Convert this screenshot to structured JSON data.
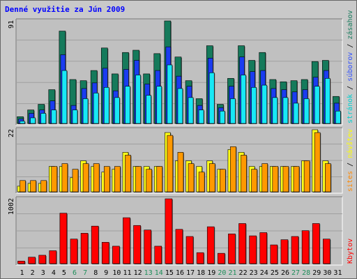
{
  "title": "Denné využitie za Jún 2009",
  "chart_data": [
    {
      "type": "bar",
      "name": "pages-hits-files",
      "x": [
        1,
        2,
        3,
        4,
        5,
        6,
        7,
        8,
        9,
        10,
        11,
        12,
        13,
        14,
        15,
        16,
        17,
        18,
        19,
        20,
        21,
        22,
        23,
        24,
        25,
        26,
        27,
        28,
        29,
        30,
        31
      ],
      "ylim": [
        0,
        91
      ],
      "y_tick_label": "91",
      "series": [
        {
          "name": "zásahov",
          "color": "#157a5b",
          "values": [
            6,
            12,
            17,
            30,
            82,
            39,
            38,
            47,
            67,
            44,
            63,
            65,
            44,
            62,
            91,
            59,
            38,
            22,
            69,
            17,
            40,
            69,
            56,
            63,
            39,
            37,
            38,
            39,
            55,
            56,
            24
          ]
        },
        {
          "name": "súborov",
          "color": "#1a3cf0",
          "values": [
            4,
            9,
            12,
            20,
            61,
            16,
            31,
            36,
            49,
            29,
            48,
            56,
            35,
            47,
            68,
            42,
            33,
            16,
            58,
            14,
            33,
            59,
            46,
            47,
            31,
            30,
            28,
            30,
            41,
            47,
            18
          ]
        },
        {
          "name": "stránok",
          "color": "#18e8f6",
          "values": [
            2,
            5,
            9,
            12,
            47,
            12,
            22,
            27,
            32,
            23,
            33,
            43,
            25,
            33,
            52,
            31,
            23,
            12,
            45,
            11,
            22,
            43,
            32,
            34,
            23,
            23,
            18,
            22,
            33,
            40,
            11
          ]
        }
      ],
      "right_label_colors": [
        "#00d0d0",
        "#3050ff",
        "#157a5b"
      ]
    },
    {
      "type": "bar",
      "name": "visits-sites",
      "x": [
        1,
        2,
        3,
        4,
        5,
        6,
        7,
        8,
        9,
        10,
        11,
        12,
        13,
        14,
        15,
        16,
        17,
        18,
        19,
        20,
        21,
        22,
        23,
        24,
        25,
        26,
        27,
        28,
        29,
        30,
        31
      ],
      "ylim": [
        0,
        22
      ],
      "y_tick_label": "22",
      "series": [
        {
          "name": "návštev",
          "color": "#ffff1a",
          "values": [
            2,
            3,
            3,
            9,
            9,
            5,
            11,
            9,
            7,
            8,
            14,
            9,
            9,
            9,
            21,
            11,
            11,
            9,
            11,
            8,
            15,
            14,
            9,
            9,
            9,
            9,
            9,
            11,
            22,
            11,
            0
          ]
        },
        {
          "name": "sites",
          "color": "#ff9900",
          "values": [
            4,
            4,
            4,
            9,
            10,
            8,
            10,
            10,
            9,
            9,
            13,
            9,
            8,
            9,
            20,
            14,
            10,
            7,
            10,
            8,
            16,
            13,
            8,
            10,
            9,
            9,
            9,
            11,
            21,
            10,
            0
          ]
        }
      ],
      "right_label_colors": [
        "#ff8800",
        "#ffff00"
      ]
    },
    {
      "type": "bar",
      "name": "kbytes",
      "x": [
        1,
        2,
        3,
        4,
        5,
        6,
        7,
        8,
        9,
        10,
        11,
        12,
        13,
        14,
        15,
        16,
        17,
        18,
        19,
        20,
        21,
        22,
        23,
        24,
        25,
        26,
        27,
        28,
        29,
        30,
        31
      ],
      "ylim": [
        0,
        1002
      ],
      "y_tick_label": "1002",
      "series": [
        {
          "name": "Kbytov",
          "color": "#ff0000",
          "values": [
            40,
            100,
            130,
            200,
            780,
            380,
            470,
            580,
            330,
            270,
            710,
            590,
            520,
            270,
            1002,
            530,
            420,
            170,
            570,
            160,
            460,
            620,
            430,
            480,
            290,
            370,
            420,
            510,
            620,
            380,
            0
          ]
        }
      ],
      "right_label_colors": [
        "#ff0000"
      ]
    }
  ],
  "x_labels": [
    {
      "d": "1",
      "c": "#000000"
    },
    {
      "d": "2",
      "c": "#000000"
    },
    {
      "d": "3",
      "c": "#000000"
    },
    {
      "d": "4",
      "c": "#000000"
    },
    {
      "d": "5",
      "c": "#000000"
    },
    {
      "d": "6",
      "c": "#1e8e5a"
    },
    {
      "d": "7",
      "c": "#1e8e5a"
    },
    {
      "d": "8",
      "c": "#000000"
    },
    {
      "d": "9",
      "c": "#000000"
    },
    {
      "d": "10",
      "c": "#000000"
    },
    {
      "d": "11",
      "c": "#000000"
    },
    {
      "d": "12",
      "c": "#000000"
    },
    {
      "d": "13",
      "c": "#1e8e5a"
    },
    {
      "d": "14",
      "c": "#1e8e5a"
    },
    {
      "d": "15",
      "c": "#000000"
    },
    {
      "d": "16",
      "c": "#000000"
    },
    {
      "d": "17",
      "c": "#000000"
    },
    {
      "d": "18",
      "c": "#000000"
    },
    {
      "d": "19",
      "c": "#000000"
    },
    {
      "d": "20",
      "c": "#1e8e5a"
    },
    {
      "d": "21",
      "c": "#1e8e5a"
    },
    {
      "d": "22",
      "c": "#000000"
    },
    {
      "d": "23",
      "c": "#000000"
    },
    {
      "d": "24",
      "c": "#000000"
    },
    {
      "d": "25",
      "c": "#000000"
    },
    {
      "d": "26",
      "c": "#000000"
    },
    {
      "d": "27",
      "c": "#1e8e5a"
    },
    {
      "d": "28",
      "c": "#1e8e5a"
    },
    {
      "d": "29",
      "c": "#000000"
    },
    {
      "d": "30",
      "c": "#000000"
    },
    {
      "d": "31",
      "c": "#000000"
    }
  ],
  "colors": {
    "background": "#c9c9c9",
    "panel": "#c0c0c0",
    "grid": "#a0a0a0",
    "title": "#0000ff"
  }
}
